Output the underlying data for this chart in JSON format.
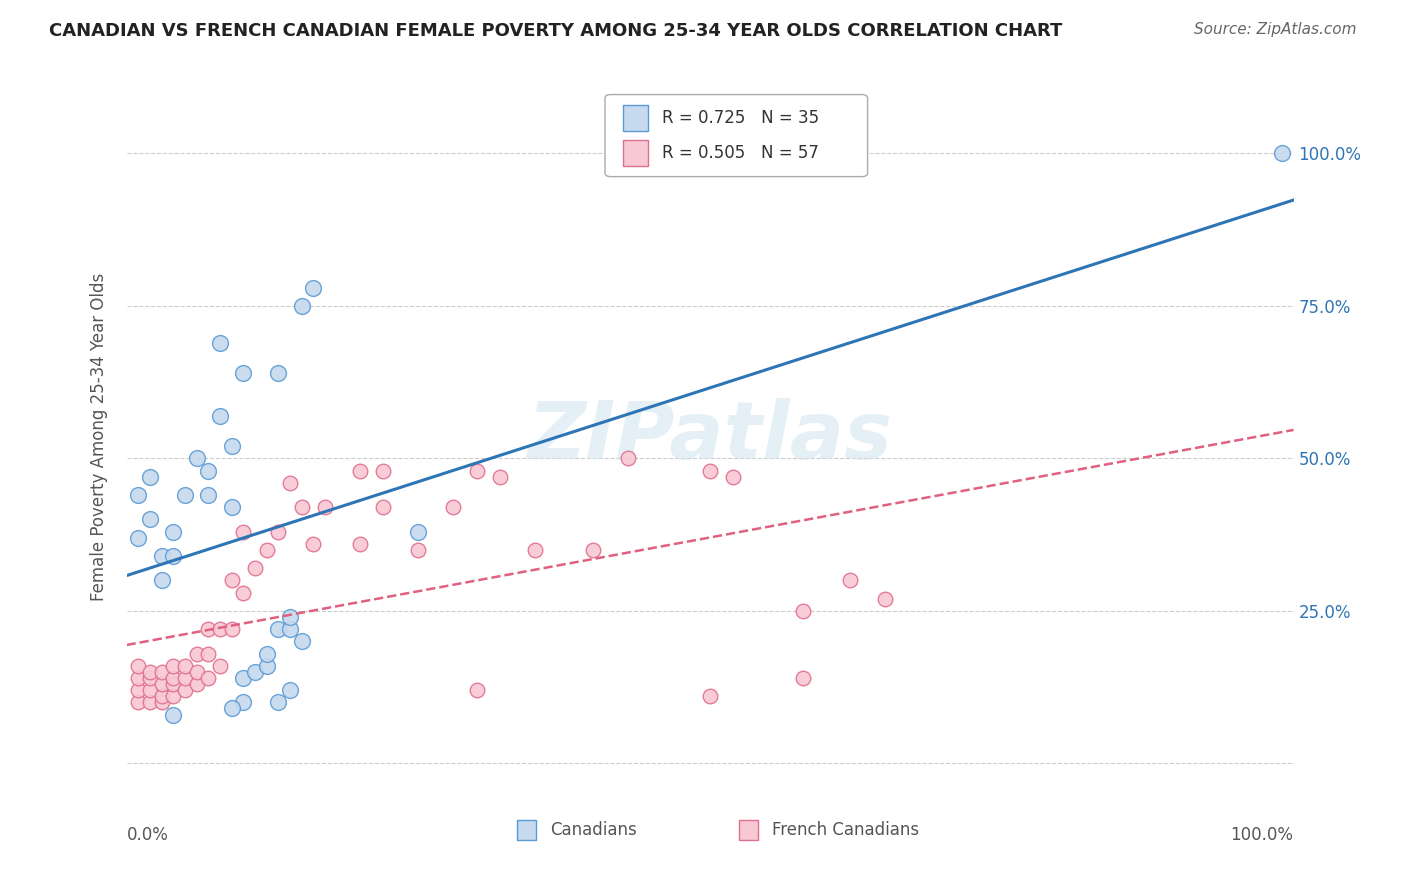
{
  "title": "CANADIAN VS FRENCH CANADIAN FEMALE POVERTY AMONG 25-34 YEAR OLDS CORRELATION CHART",
  "source": "Source: ZipAtlas.com",
  "ylabel": "Female Poverty Among 25-34 Year Olds",
  "xlim": [
    0,
    1.0
  ],
  "ylim": [
    -0.05,
    1.12
  ],
  "yticks": [
    0.0,
    0.25,
    0.5,
    0.75,
    1.0
  ],
  "ytick_labels": [
    "",
    "25.0%",
    "50.0%",
    "75.0%",
    "100.0%"
  ],
  "legend_blue_r": "R = 0.725",
  "legend_blue_n": "N = 35",
  "legend_pink_r": "R = 0.505",
  "legend_pink_n": "N = 57",
  "blue_fill": "#c6d9ee",
  "blue_edge": "#5b9bd5",
  "pink_fill": "#f8c8d4",
  "pink_edge": "#e07090",
  "blue_line_color": "#2e75b6",
  "pink_line_color": "#e06080",
  "background_color": "#ffffff",
  "grid_color": "#cccccc",
  "right_tick_color": "#2e75b6",
  "canadians_x": [
    0.01,
    0.01,
    0.02,
    0.02,
    0.03,
    0.03,
    0.04,
    0.04,
    0.05,
    0.06,
    0.07,
    0.07,
    0.08,
    0.09,
    0.09,
    0.1,
    0.11,
    0.12,
    0.12,
    0.13,
    0.14,
    0.14,
    0.15,
    0.08,
    0.1,
    0.13,
    0.15,
    0.16,
    0.25,
    0.13,
    0.14,
    0.1,
    0.09,
    0.99,
    0.04
  ],
  "canadians_y": [
    0.37,
    0.44,
    0.4,
    0.47,
    0.3,
    0.34,
    0.34,
    0.38,
    0.44,
    0.5,
    0.44,
    0.48,
    0.57,
    0.42,
    0.52,
    0.14,
    0.15,
    0.16,
    0.18,
    0.22,
    0.22,
    0.24,
    0.2,
    0.69,
    0.64,
    0.64,
    0.75,
    0.78,
    0.38,
    0.1,
    0.12,
    0.1,
    0.09,
    1.0,
    0.08
  ],
  "french_canadians_x": [
    0.01,
    0.01,
    0.01,
    0.01,
    0.02,
    0.02,
    0.02,
    0.02,
    0.03,
    0.03,
    0.03,
    0.03,
    0.04,
    0.04,
    0.04,
    0.04,
    0.05,
    0.05,
    0.05,
    0.06,
    0.06,
    0.06,
    0.07,
    0.07,
    0.07,
    0.08,
    0.08,
    0.09,
    0.09,
    0.1,
    0.1,
    0.11,
    0.12,
    0.13,
    0.14,
    0.15,
    0.16,
    0.17,
    0.2,
    0.2,
    0.22,
    0.22,
    0.25,
    0.28,
    0.3,
    0.32,
    0.35,
    0.4,
    0.43,
    0.5,
    0.52,
    0.58,
    0.62,
    0.65,
    0.58,
    0.3,
    0.5
  ],
  "french_canadians_y": [
    0.1,
    0.12,
    0.14,
    0.16,
    0.1,
    0.12,
    0.14,
    0.15,
    0.1,
    0.11,
    0.13,
    0.15,
    0.11,
    0.13,
    0.14,
    0.16,
    0.12,
    0.14,
    0.16,
    0.13,
    0.15,
    0.18,
    0.14,
    0.18,
    0.22,
    0.16,
    0.22,
    0.22,
    0.3,
    0.28,
    0.38,
    0.32,
    0.35,
    0.38,
    0.46,
    0.42,
    0.36,
    0.42,
    0.36,
    0.48,
    0.42,
    0.48,
    0.35,
    0.42,
    0.48,
    0.47,
    0.35,
    0.35,
    0.5,
    0.48,
    0.47,
    0.14,
    0.3,
    0.27,
    0.25,
    0.12,
    0.11
  ]
}
